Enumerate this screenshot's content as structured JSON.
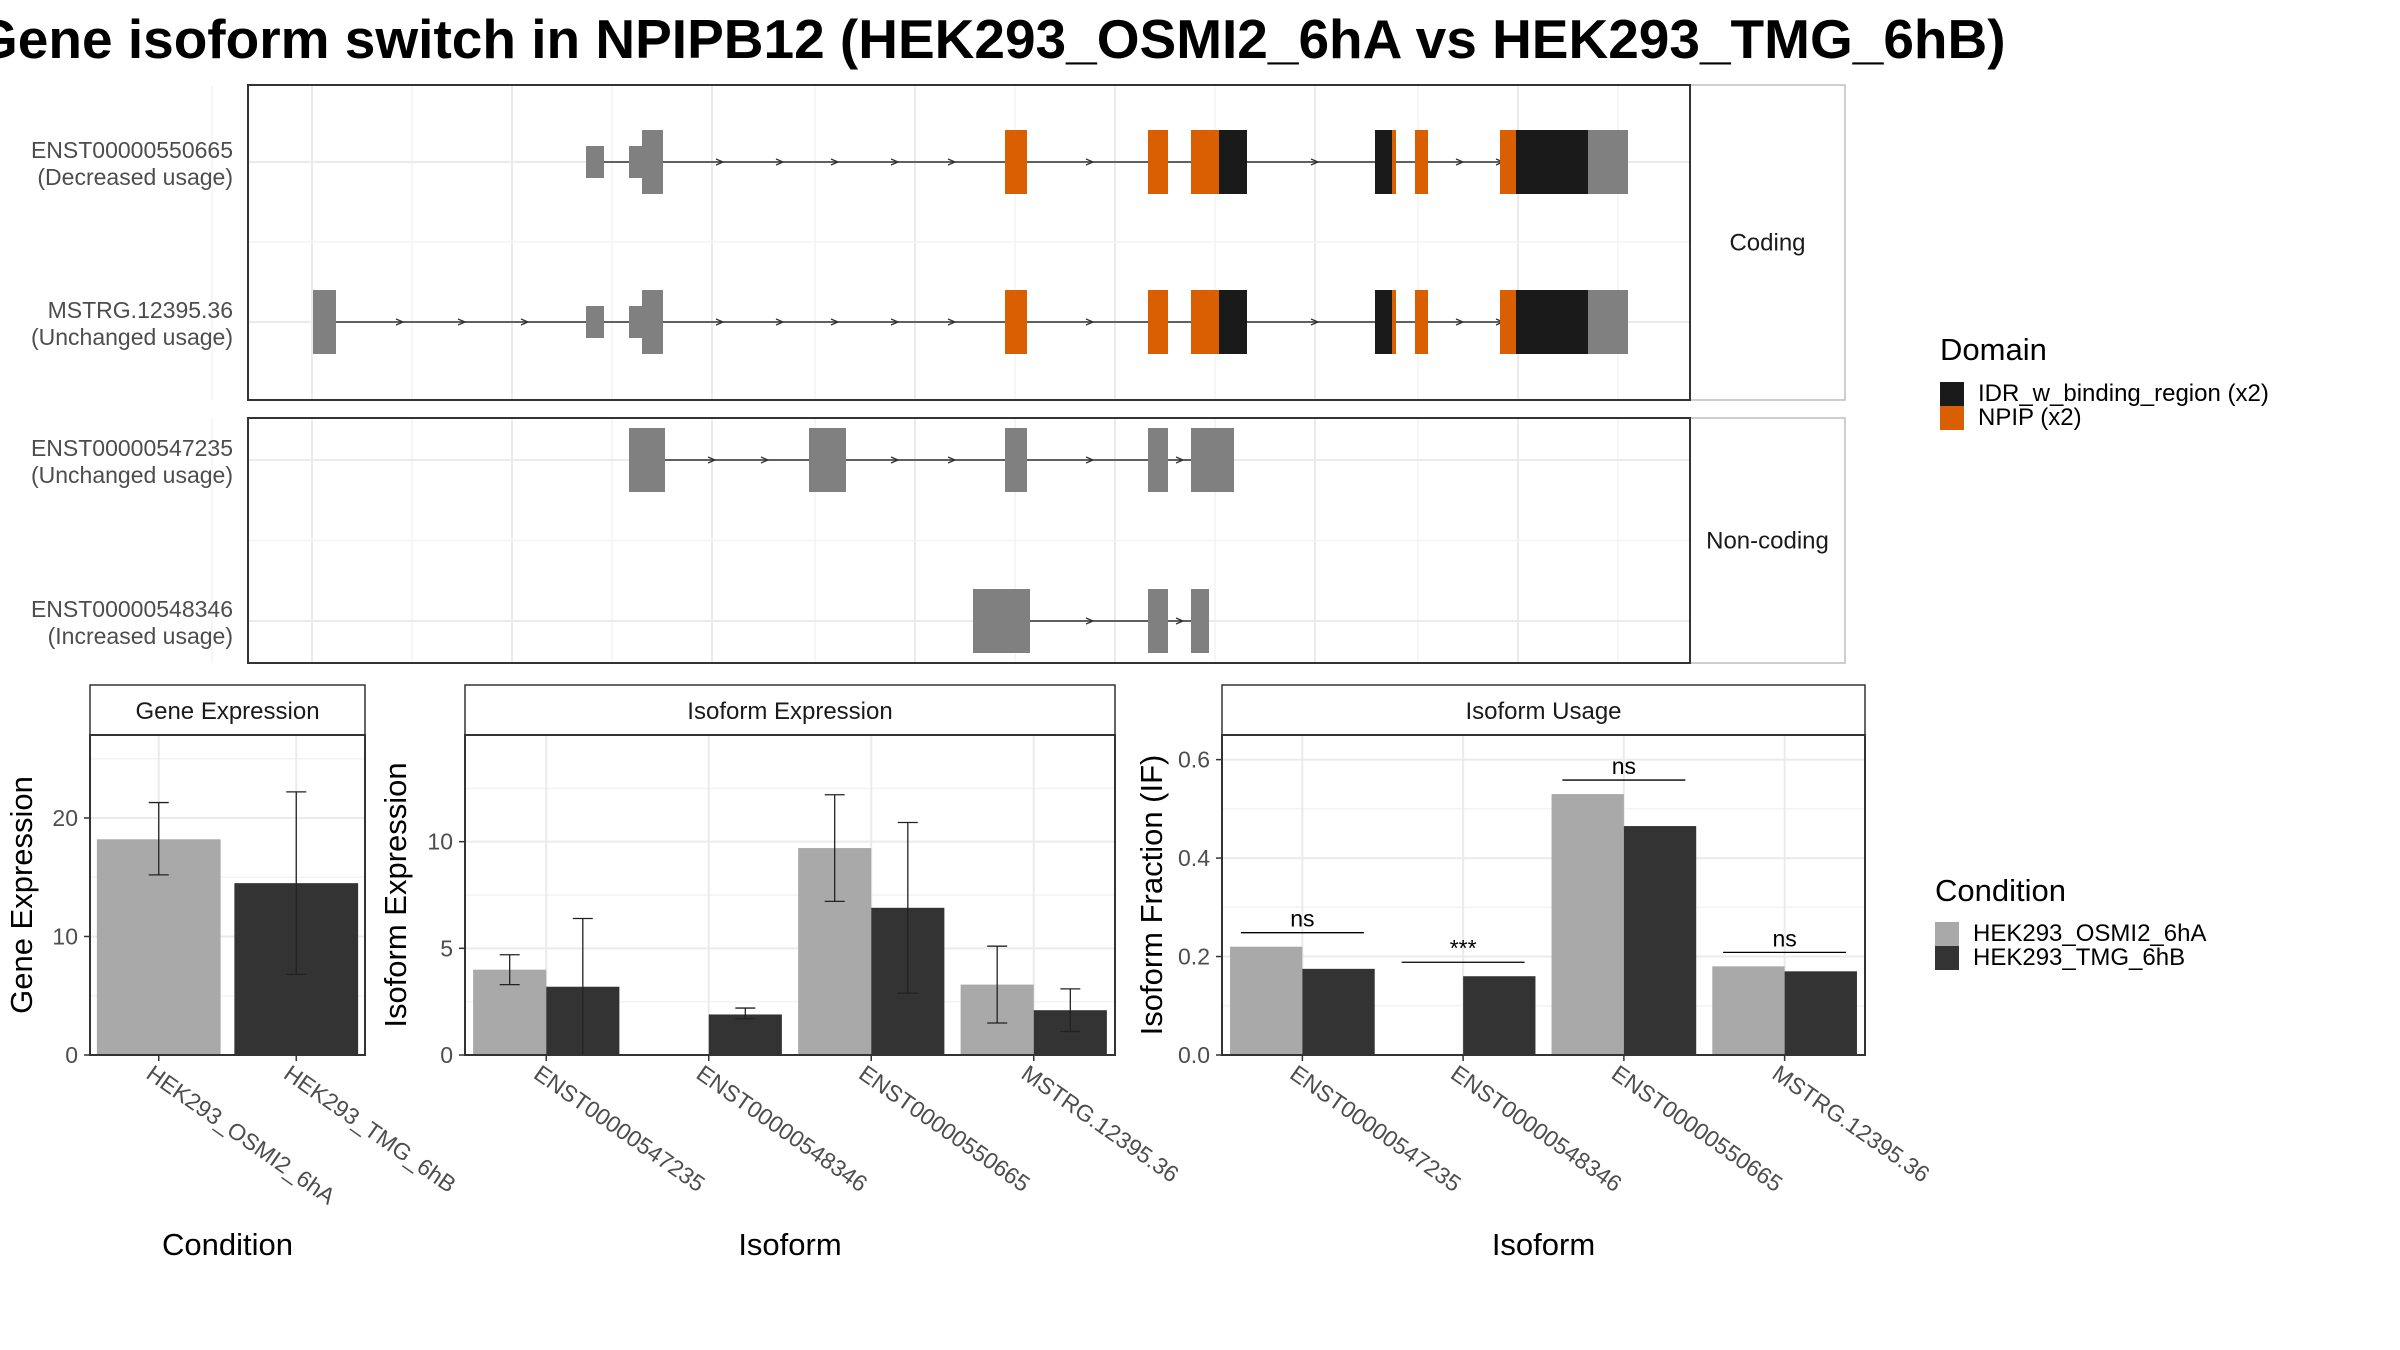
{
  "title": "Gene isoform switch in NPIPB12 (HEK293_OSMI2_6hA vs HEK293_TMG_6hB)",
  "colors": {
    "intron": "#333333",
    "exon": "#808080",
    "IDR_w_binding_region": "#1a1a1a",
    "NPIP": "#d95f02",
    "cond_a": "#a9a9a9",
    "cond_b": "#333333"
  },
  "structure": {
    "facets": [
      "Coding",
      "Non-coding"
    ],
    "transcripts": [
      {
        "id": "ENST00000550665",
        "usage": "(Decreased usage)",
        "facet": "Coding"
      },
      {
        "id": "MSTRG.12395.36",
        "usage": "(Unchanged usage)",
        "facet": "Coding"
      },
      {
        "id": "ENST00000547235",
        "usage": "(Unchanged usage)",
        "facet": "Non-coding"
      },
      {
        "id": "ENST00000548346",
        "usage": "(Increased usage)",
        "facet": "Non-coding"
      }
    ],
    "domain_legend": {
      "title": "Domain",
      "items": [
        {
          "label": "IDR_w_binding_region (x2)",
          "color": "#1a1a1a"
        },
        {
          "label": "NPIP (x2)",
          "color": "#d95f02"
        }
      ]
    }
  },
  "condition_legend": {
    "title": "Condition",
    "items": [
      {
        "label": "HEK293_OSMI2_6hA",
        "color": "#a9a9a9"
      },
      {
        "label": "HEK293_TMG_6hB",
        "color": "#333333"
      }
    ]
  },
  "chart_data": [
    {
      "type": "bar",
      "panel": "Gene Expression",
      "xlabel": "Condition",
      "ylabel": "Gene Expression",
      "ylim": [
        0,
        27
      ],
      "yticks": [
        0,
        10,
        20
      ],
      "categories": [
        "HEK293_OSMI2_6hA",
        "HEK293_TMG_6hB"
      ],
      "values": [
        18.2,
        14.5
      ],
      "error_low": [
        15.2,
        6.8
      ],
      "error_high": [
        21.3,
        22.2
      ]
    },
    {
      "type": "bar",
      "panel": "Isoform Expression",
      "xlabel": "Isoform",
      "ylabel": "Isoform Expression",
      "ylim": [
        0,
        15
      ],
      "yticks": [
        0,
        5,
        10
      ],
      "categories": [
        "ENST00000547235",
        "ENST00000548346",
        "ENST00000550665",
        "MSTRG.12395.36"
      ],
      "series": [
        {
          "name": "HEK293_OSMI2_6hA",
          "values": [
            4.0,
            0.0,
            9.7,
            3.3
          ],
          "error_low": [
            3.3,
            0.0,
            7.2,
            1.5
          ],
          "error_high": [
            4.7,
            0.0,
            12.2,
            5.1
          ]
        },
        {
          "name": "HEK293_TMG_6hB",
          "values": [
            3.2,
            1.9,
            6.9,
            2.1
          ],
          "error_low": [
            0.0,
            1.7,
            2.9,
            1.1
          ],
          "error_high": [
            6.4,
            2.2,
            10.9,
            3.1
          ]
        }
      ]
    },
    {
      "type": "bar",
      "panel": "Isoform Usage",
      "xlabel": "Isoform",
      "ylabel": "Isoform Fraction (IF)",
      "ylim": [
        0,
        0.65
      ],
      "yticks": [
        0.0,
        0.2,
        0.4,
        0.6
      ],
      "categories": [
        "ENST00000547235",
        "ENST00000548346",
        "ENST00000550665",
        "MSTRG.12395.36"
      ],
      "series": [
        {
          "name": "HEK293_OSMI2_6hA",
          "values": [
            0.22,
            0.0,
            0.53,
            0.18
          ]
        },
        {
          "name": "HEK293_TMG_6hB",
          "values": [
            0.175,
            0.16,
            0.465,
            0.17
          ]
        }
      ],
      "significance": [
        "ns",
        "***",
        "ns",
        "ns"
      ]
    }
  ]
}
